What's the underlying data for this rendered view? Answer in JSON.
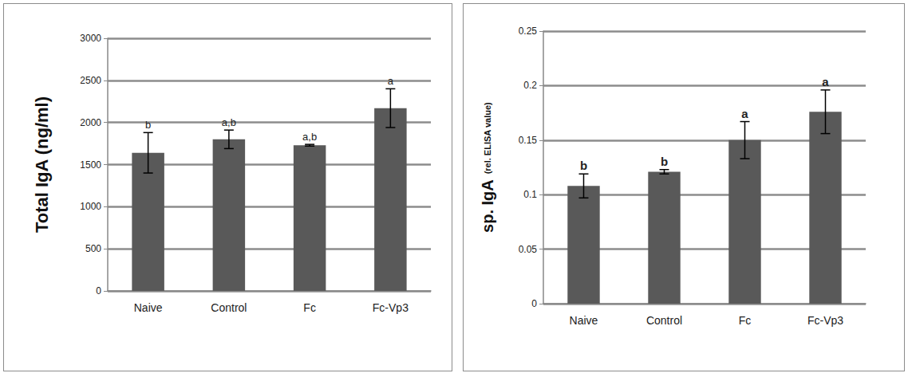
{
  "chart_data": [
    {
      "type": "bar",
      "ylabel": "Total IgA (ng/ml)",
      "categories": [
        "Naive",
        "Control",
        "Fc",
        "Fc-Vp3"
      ],
      "values": [
        1640,
        1800,
        1730,
        2170
      ],
      "errors": [
        240,
        110,
        10,
        230
      ],
      "letters": [
        "b",
        "a,b",
        "a,b",
        "a"
      ],
      "color": "#595959",
      "ylim": [
        0,
        3000
      ],
      "yticks": [
        0,
        500,
        1000,
        1500,
        2000,
        2500,
        3000
      ],
      "grid": true
    },
    {
      "type": "bar",
      "ylabel": "sp. IgA",
      "ylabel_unit": "(rel. ELISA value)",
      "categories": [
        "Naive",
        "Control",
        "Fc",
        "Fc-Vp3"
      ],
      "values": [
        0.108,
        0.121,
        0.15,
        0.176
      ],
      "errors": [
        0.011,
        0.002,
        0.017,
        0.02
      ],
      "letters": [
        "b",
        "b",
        "a",
        "a"
      ],
      "color": "#595959",
      "ylim": [
        0,
        0.25
      ],
      "yticks": [
        0,
        0.05,
        0.1,
        0.15,
        0.2,
        0.25
      ],
      "grid": true
    }
  ]
}
